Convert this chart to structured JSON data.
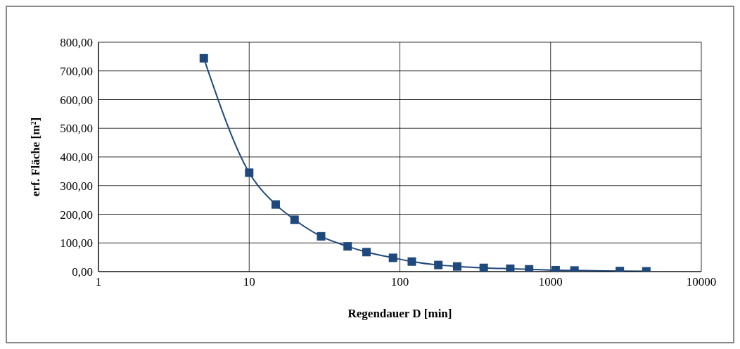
{
  "chart_data": {
    "type": "line",
    "xlabel": "Regendauer D [min]",
    "ylabel": "erf. Fläche [m²]",
    "x": [
      5,
      10,
      15,
      20,
      30,
      45,
      60,
      90,
      120,
      180,
      240,
      360,
      540,
      720,
      1080,
      1440,
      2880,
      4320
    ],
    "series": [
      {
        "color": "#1f497d",
        "values": [
          744,
          345,
          234,
          181,
          123,
          88,
          68,
          48,
          35,
          23,
          18,
          13,
          10,
          8,
          5,
          4,
          2,
          1
        ]
      }
    ],
    "log": "x",
    "xlim": [
      1,
      10000
    ],
    "xticks": [
      1,
      10,
      100,
      1000,
      10000
    ],
    "ylim": [
      0,
      800
    ],
    "yticks": [
      {
        "value": 0,
        "label": "0,00"
      },
      {
        "value": 100,
        "label": "100,00"
      },
      {
        "value": 200,
        "label": "200,00"
      },
      {
        "value": 300,
        "label": "300,00"
      },
      {
        "value": 400,
        "label": "400,00"
      },
      {
        "value": 500,
        "label": "500,00"
      },
      {
        "value": 600,
        "label": "600,00"
      },
      {
        "value": 700,
        "label": "700,00"
      },
      {
        "value": 800,
        "label": "800,00"
      }
    ],
    "grid": true,
    "marker": "square",
    "line_style": "solid"
  }
}
